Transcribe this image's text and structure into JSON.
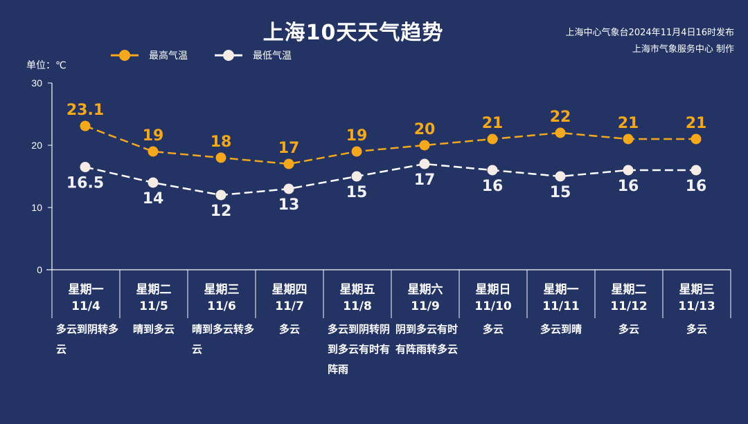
{
  "title": "上海10天天气趋势",
  "source_line1": "上海中心气象台2024年11月4日16时发布",
  "source_line2": "上海市气象服务中心 制作",
  "colors": {
    "high": "#f5a81c",
    "low": "#f5ece6",
    "background": "#233364"
  },
  "chart_data": {
    "type": "line",
    "title": "上海10天天气趋势",
    "ylabel": "单位：℃",
    "ylim": [
      0,
      30
    ],
    "yticks": [
      "0",
      "10",
      "20",
      "30"
    ],
    "legend": [
      "最高气温",
      "最低气温"
    ],
    "legend_position": "top-left",
    "grid": false,
    "categories": [
      {
        "weekday": "星期一",
        "date": "11/4",
        "weather": "多云到阴转多云"
      },
      {
        "weekday": "星期二",
        "date": "11/5",
        "weather": "晴到多云"
      },
      {
        "weekday": "星期三",
        "date": "11/6",
        "weather": "晴到多云转多云"
      },
      {
        "weekday": "星期四",
        "date": "11/7",
        "weather": "多云"
      },
      {
        "weekday": "星期五",
        "date": "11/8",
        "weather": "多云到阴转阴到多云有时有阵雨"
      },
      {
        "weekday": "星期六",
        "date": "11/9",
        "weather": "阴到多云有时有阵雨转多云"
      },
      {
        "weekday": "星期日",
        "date": "11/10",
        "weather": "多云"
      },
      {
        "weekday": "星期一",
        "date": "11/11",
        "weather": "多云到晴"
      },
      {
        "weekday": "星期二",
        "date": "11/12",
        "weather": "多云"
      },
      {
        "weekday": "星期三",
        "date": "11/13",
        "weather": "多云"
      }
    ],
    "series": [
      {
        "name": "最高气温",
        "values": [
          23.1,
          19,
          18,
          17,
          19,
          20,
          21,
          22,
          21,
          21
        ],
        "labels": [
          "23.1",
          "19",
          "18",
          "17",
          "19",
          "20",
          "21",
          "22",
          "21",
          "21"
        ]
      },
      {
        "name": "最低气温",
        "values": [
          16.5,
          14,
          12,
          13,
          15,
          17,
          16,
          15,
          16,
          16
        ],
        "labels": [
          "16.5",
          "14",
          "12",
          "13",
          "15",
          "17",
          "16",
          "15",
          "16",
          "16"
        ]
      }
    ]
  }
}
